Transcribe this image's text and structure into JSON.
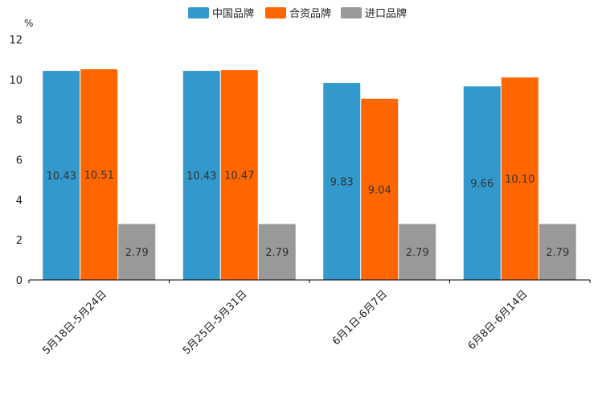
{
  "chart_data": {
    "type": "bar",
    "title": "",
    "ylabel": "%",
    "xlabel": "",
    "ylim": [
      0,
      12
    ],
    "yticks": [
      "0",
      "2",
      "4",
      "6",
      "8",
      "10",
      "12"
    ],
    "categories": [
      "5月18日-5月24日",
      "5月25日-5月31日",
      "6月1日-6月7日",
      "6月8日-6月14日"
    ],
    "series": [
      {
        "name": "中国品牌",
        "color": "#3399cc",
        "values": [
          10.43,
          10.43,
          9.83,
          9.66
        ],
        "labels": [
          "10.43",
          "10.43",
          "9.83",
          "9.66"
        ]
      },
      {
        "name": "合资品牌",
        "color": "#ff6600",
        "values": [
          10.51,
          10.47,
          9.04,
          10.1
        ],
        "labels": [
          "10.51",
          "10.47",
          "9.04",
          "10.10"
        ]
      },
      {
        "name": "进口品牌",
        "color": "#999999",
        "values": [
          2.79,
          2.79,
          2.79,
          2.79
        ],
        "labels": [
          "2.79",
          "2.79",
          "2.79",
          "2.79"
        ]
      }
    ],
    "legend_position": "top-center",
    "grid": false
  }
}
